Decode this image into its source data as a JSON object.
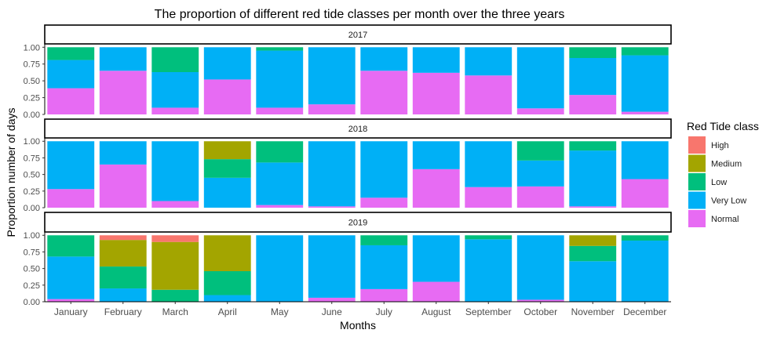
{
  "chart_data": {
    "type": "stacked-bar-facets",
    "title": "The proportion of different red tide classes per month over the three years",
    "xlabel": "Months",
    "ylabel": "Proportion number of days",
    "ylim": [
      0,
      1.05
    ],
    "yticks": [
      "0.00",
      "0.25",
      "0.50",
      "0.75",
      "1.00"
    ],
    "categories": [
      "January",
      "February",
      "March",
      "April",
      "May",
      "June",
      "July",
      "August",
      "September",
      "October",
      "November",
      "December"
    ],
    "stack_order": [
      "Normal",
      "Very Low",
      "Low",
      "Medium",
      "High"
    ],
    "legend": {
      "title": "Red Tide class",
      "position": "right",
      "items": [
        {
          "name": "High",
          "color": "#F8766D"
        },
        {
          "name": "Medium",
          "color": "#A3A500"
        },
        {
          "name": "Low",
          "color": "#00BF7D"
        },
        {
          "name": "Very Low",
          "color": "#00B0F6"
        },
        {
          "name": "Normal",
          "color": "#E76BF3"
        }
      ]
    },
    "facets": [
      {
        "label": "2017",
        "series": [
          {
            "name": "Normal",
            "values": [
              0.39,
              0.65,
              0.1,
              0.52,
              0.1,
              0.15,
              0.65,
              0.62,
              0.58,
              0.09,
              0.29,
              0.04
            ]
          },
          {
            "name": "Very Low",
            "values": [
              0.42,
              0.35,
              0.53,
              0.48,
              0.85,
              0.85,
              0.35,
              0.38,
              0.42,
              0.91,
              0.55,
              0.84
            ]
          },
          {
            "name": "Low",
            "values": [
              0.19,
              0.0,
              0.37,
              0.0,
              0.05,
              0.0,
              0.0,
              0.0,
              0.0,
              0.0,
              0.16,
              0.12
            ]
          },
          {
            "name": "Medium",
            "values": [
              0,
              0,
              0,
              0,
              0,
              0,
              0,
              0,
              0,
              0,
              0,
              0
            ]
          },
          {
            "name": "High",
            "values": [
              0,
              0,
              0,
              0,
              0,
              0,
              0,
              0,
              0,
              0,
              0,
              0
            ]
          }
        ]
      },
      {
        "label": "2018",
        "series": [
          {
            "name": "Normal",
            "values": [
              0.28,
              0.65,
              0.1,
              0.0,
              0.04,
              0.02,
              0.15,
              0.58,
              0.31,
              0.32,
              0.02,
              0.43
            ]
          },
          {
            "name": "Very Low",
            "values": [
              0.72,
              0.35,
              0.9,
              0.45,
              0.64,
              0.98,
              0.85,
              0.42,
              0.69,
              0.39,
              0.84,
              0.57
            ]
          },
          {
            "name": "Low",
            "values": [
              0.0,
              0.0,
              0.0,
              0.28,
              0.32,
              0.0,
              0.0,
              0.0,
              0.0,
              0.29,
              0.14,
              0.0
            ]
          },
          {
            "name": "Medium",
            "values": [
              0.0,
              0.0,
              0.0,
              0.27,
              0.0,
              0.0,
              0.0,
              0.0,
              0.0,
              0.0,
              0.0,
              0.0
            ]
          },
          {
            "name": "High",
            "values": [
              0,
              0,
              0,
              0,
              0,
              0,
              0,
              0,
              0,
              0,
              0,
              0
            ]
          }
        ]
      },
      {
        "label": "2019",
        "series": [
          {
            "name": "Normal",
            "values": [
              0.04,
              0.0,
              0.0,
              0.0,
              0.0,
              0.06,
              0.19,
              0.3,
              0.0,
              0.03,
              0.0,
              0.0
            ]
          },
          {
            "name": "Very Low",
            "values": [
              0.64,
              0.2,
              0.0,
              0.1,
              1.0,
              0.94,
              0.66,
              0.7,
              0.94,
              0.97,
              0.61,
              0.92
            ]
          },
          {
            "name": "Low",
            "values": [
              0.32,
              0.33,
              0.18,
              0.36,
              0.0,
              0.0,
              0.15,
              0.0,
              0.06,
              0.0,
              0.23,
              0.08
            ]
          },
          {
            "name": "Medium",
            "values": [
              0.0,
              0.4,
              0.72,
              0.54,
              0.0,
              0.0,
              0.0,
              0.0,
              0.0,
              0.0,
              0.16,
              0.0
            ]
          },
          {
            "name": "High",
            "values": [
              0.0,
              0.07,
              0.1,
              0.0,
              0.0,
              0.0,
              0.0,
              0.0,
              0.0,
              0.0,
              0.0,
              0.0
            ]
          }
        ]
      }
    ]
  }
}
